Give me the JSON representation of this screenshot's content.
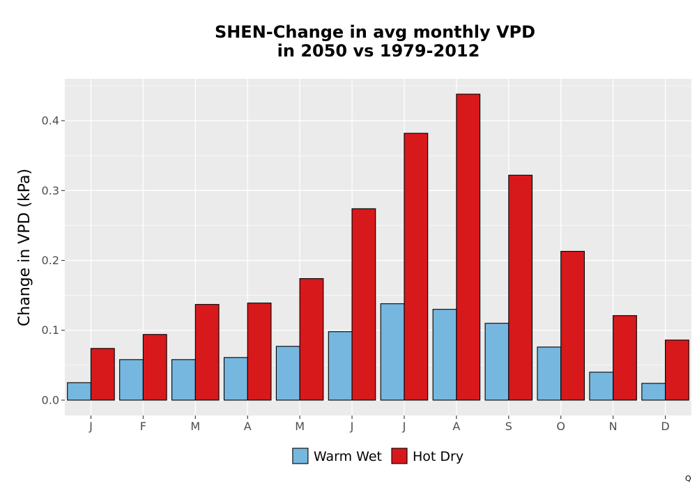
{
  "chart_data": {
    "type": "bar",
    "title_lines": [
      "SHEN-Change in avg monthly VPD",
      "in 2050 vs 1979-2012"
    ],
    "xlabel": "",
    "ylabel": "Change in VPD (kPa)",
    "categories": [
      "J",
      "F",
      "M",
      "A",
      "M",
      "J",
      "J",
      "A",
      "S",
      "O",
      "N",
      "D"
    ],
    "series": [
      {
        "name": "Warm Wet",
        "color": "#76b7e0",
        "values": [
          0.025,
          0.058,
          0.058,
          0.061,
          0.077,
          0.098,
          0.138,
          0.13,
          0.11,
          0.076,
          0.04,
          0.024
        ]
      },
      {
        "name": "Hot Dry",
        "color": "#d7191c",
        "values": [
          0.074,
          0.094,
          0.137,
          0.139,
          0.174,
          0.274,
          0.382,
          0.438,
          0.322,
          0.213,
          0.121,
          0.086
        ]
      }
    ],
    "ylim": [
      -0.022,
      0.46
    ],
    "yticks": [
      0.0,
      0.1,
      0.2,
      0.3,
      0.4
    ],
    "ytick_labels": [
      "0.0",
      "0.1",
      "0.2",
      "0.3",
      "0.4"
    ],
    "grid": true,
    "panel_background": "#ebebeb",
    "legend_position": "bottom",
    "caption": "Q"
  }
}
